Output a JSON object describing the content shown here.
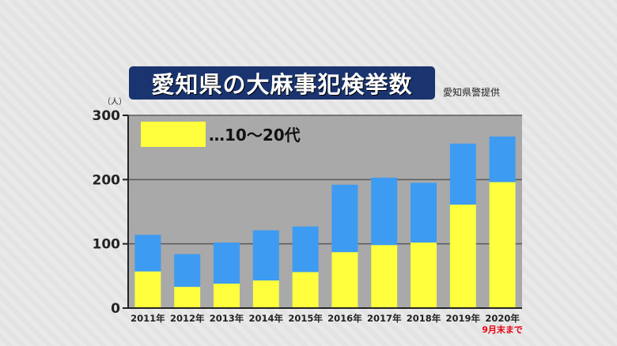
{
  "title": "愛知県の大麻事犯検挙数",
  "source": "愛知県警提供",
  "legend_label": "…10～20代",
  "colors": {
    "total": "#3d9bf2",
    "youth": "#ffff3d",
    "plot_bg": "#a9a9a9",
    "title_bg": "#1a3470",
    "note": "#e60012"
  },
  "chart_data": {
    "type": "bar",
    "unit_label": "（人）",
    "categories": [
      "2011年",
      "2012年",
      "2013年",
      "2014年",
      "2015年",
      "2016年",
      "2017年",
      "2018年",
      "2019年",
      "2020年"
    ],
    "series": [
      {
        "name": "10～20代",
        "values": [
          57,
          33,
          38,
          43,
          56,
          87,
          98,
          102,
          161,
          196
        ]
      },
      {
        "values": [
          114,
          84,
          102,
          121,
          127,
          192,
          203,
          195,
          256,
          267
        ]
      }
    ],
    "ylim": [
      0,
      300
    ],
    "yticks": [
      0,
      100,
      200,
      300
    ],
    "grid": true,
    "legend_position": "top-left",
    "last_category_note": "9月末まで"
  }
}
